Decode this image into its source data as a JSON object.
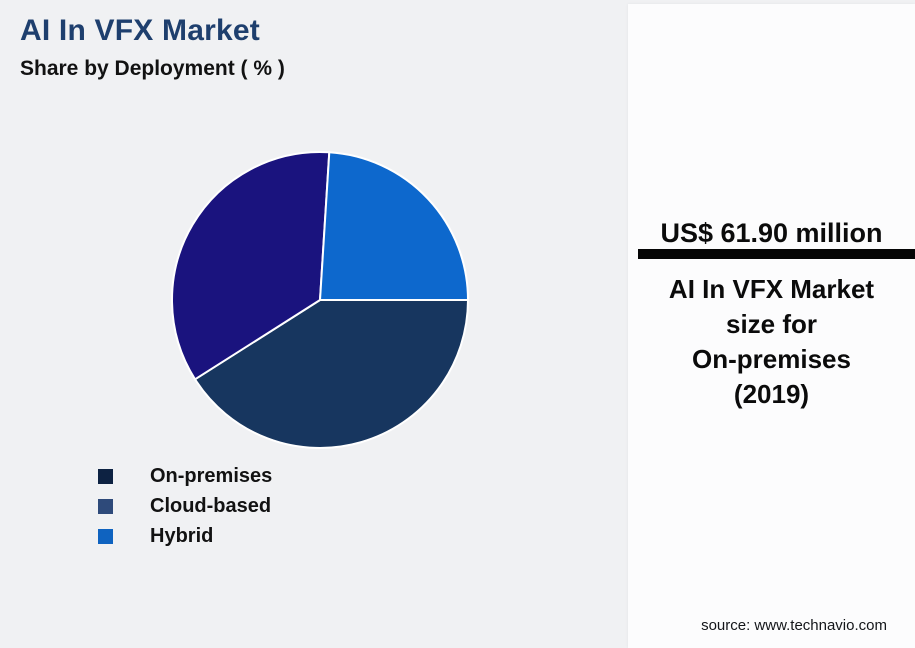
{
  "page": {
    "background": "#f0f1f3",
    "panel_background": "#fcfcfd"
  },
  "header": {
    "title": "AI In VFX Market",
    "subtitle": "Share by Deployment ( % )",
    "title_color": "#1e3f6e"
  },
  "chart_data": {
    "type": "pie",
    "title": "AI In VFX Market",
    "subtitle": "Share by Deployment ( % )",
    "labels": [
      "On-premises",
      "Cloud-based",
      "Hybrid"
    ],
    "values": [
      41,
      35,
      24
    ],
    "unit": "%",
    "slice_colors": [
      "#17365f",
      "#1a137e",
      "#0d68cd"
    ],
    "legend_colors": [
      "#0d2242",
      "#2e4a7a",
      "#0f63c0"
    ],
    "slice_border_color": "#ffffff",
    "start_angle_deg_clockwise_from_north": 90,
    "direction": "clockwise",
    "legend_position": "bottom-left"
  },
  "info_panel": {
    "metric_value": "US$ 61.90 million",
    "metric_description": "AI In VFX Market\nsize for\nOn-premises\n(2019)",
    "divider_color": "#050505",
    "source": "source: www.technavio.com"
  }
}
